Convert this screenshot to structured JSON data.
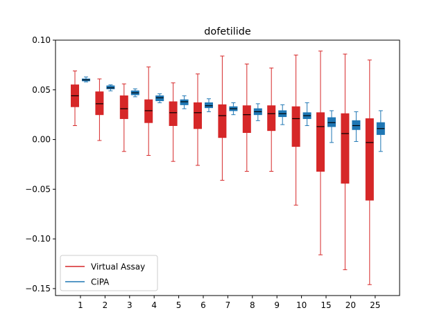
{
  "chart_data": {
    "type": "box",
    "title": "dofetilide",
    "xlabel": "",
    "ylabel": "",
    "categories": [
      "1",
      "2",
      "3",
      "4",
      "5",
      "6",
      "7",
      "8",
      "9",
      "10",
      "15",
      "20",
      "25"
    ],
    "ylim": [
      -0.157,
      0.1
    ],
    "yticks": [
      -0.15,
      -0.1,
      -0.05,
      0.0,
      0.05,
      0.1
    ],
    "ytick_labels": [
      "−0.15",
      "−0.10",
      "−0.05",
      "0.00",
      "0.05",
      "0.10"
    ],
    "grid": false,
    "legend": {
      "placement": "lower-left"
    },
    "series": [
      {
        "name": "Virtual Assay",
        "color": "#d62728",
        "median_color": "#000000",
        "boxes": [
          {
            "whislo": 0.014,
            "q1": 0.033,
            "med": 0.044,
            "q3": 0.055,
            "whishi": 0.069
          },
          {
            "whislo": -0.001,
            "q1": 0.025,
            "med": 0.036,
            "q3": 0.048,
            "whishi": 0.061
          },
          {
            "whislo": -0.012,
            "q1": 0.021,
            "med": 0.031,
            "q3": 0.044,
            "whishi": 0.056
          },
          {
            "whislo": -0.016,
            "q1": 0.017,
            "med": 0.029,
            "q3": 0.04,
            "whishi": 0.073
          },
          {
            "whislo": -0.022,
            "q1": 0.014,
            "med": 0.027,
            "q3": 0.038,
            "whishi": 0.057
          },
          {
            "whislo": -0.026,
            "q1": 0.011,
            "med": 0.027,
            "q3": 0.037,
            "whishi": 0.066
          },
          {
            "whislo": -0.041,
            "q1": 0.002,
            "med": 0.024,
            "q3": 0.035,
            "whishi": 0.084
          },
          {
            "whislo": -0.032,
            "q1": 0.007,
            "med": 0.025,
            "q3": 0.034,
            "whishi": 0.076
          },
          {
            "whislo": -0.032,
            "q1": 0.009,
            "med": 0.026,
            "q3": 0.034,
            "whishi": 0.072
          },
          {
            "whislo": -0.066,
            "q1": -0.007,
            "med": 0.021,
            "q3": 0.033,
            "whishi": 0.085
          },
          {
            "whislo": -0.116,
            "q1": -0.032,
            "med": 0.013,
            "q3": 0.027,
            "whishi": 0.089
          },
          {
            "whislo": -0.131,
            "q1": -0.044,
            "med": 0.006,
            "q3": 0.026,
            "whishi": 0.086
          },
          {
            "whislo": -0.146,
            "q1": -0.061,
            "med": -0.003,
            "q3": 0.021,
            "whishi": 0.08
          }
        ]
      },
      {
        "name": "CiPA",
        "color": "#1f77b4",
        "median_color": "#000000",
        "boxes": [
          {
            "whislo": 0.058,
            "q1": 0.059,
            "med": 0.06,
            "q3": 0.061,
            "whishi": 0.063
          },
          {
            "whislo": 0.049,
            "q1": 0.051,
            "med": 0.052,
            "q3": 0.054,
            "whishi": 0.055
          },
          {
            "whislo": 0.043,
            "q1": 0.045,
            "med": 0.047,
            "q3": 0.049,
            "whishi": 0.051
          },
          {
            "whislo": 0.037,
            "q1": 0.039,
            "med": 0.042,
            "q3": 0.044,
            "whishi": 0.046
          },
          {
            "whislo": 0.031,
            "q1": 0.035,
            "med": 0.038,
            "q3": 0.04,
            "whishi": 0.044
          },
          {
            "whislo": 0.028,
            "q1": 0.032,
            "med": 0.034,
            "q3": 0.037,
            "whishi": 0.041
          },
          {
            "whislo": 0.025,
            "q1": 0.029,
            "med": 0.031,
            "q3": 0.033,
            "whishi": 0.037
          },
          {
            "whislo": 0.019,
            "q1": 0.025,
            "med": 0.028,
            "q3": 0.031,
            "whishi": 0.036
          },
          {
            "whislo": 0.015,
            "q1": 0.023,
            "med": 0.026,
            "q3": 0.029,
            "whishi": 0.035
          },
          {
            "whislo": 0.014,
            "q1": 0.021,
            "med": 0.024,
            "q3": 0.027,
            "whishi": 0.037
          },
          {
            "whislo": -0.003,
            "q1": 0.013,
            "med": 0.017,
            "q3": 0.022,
            "whishi": 0.029
          },
          {
            "whislo": -0.002,
            "q1": 0.01,
            "med": 0.014,
            "q3": 0.019,
            "whishi": 0.028
          },
          {
            "whislo": -0.012,
            "q1": 0.005,
            "med": 0.011,
            "q3": 0.017,
            "whishi": 0.029
          }
        ]
      }
    ]
  }
}
